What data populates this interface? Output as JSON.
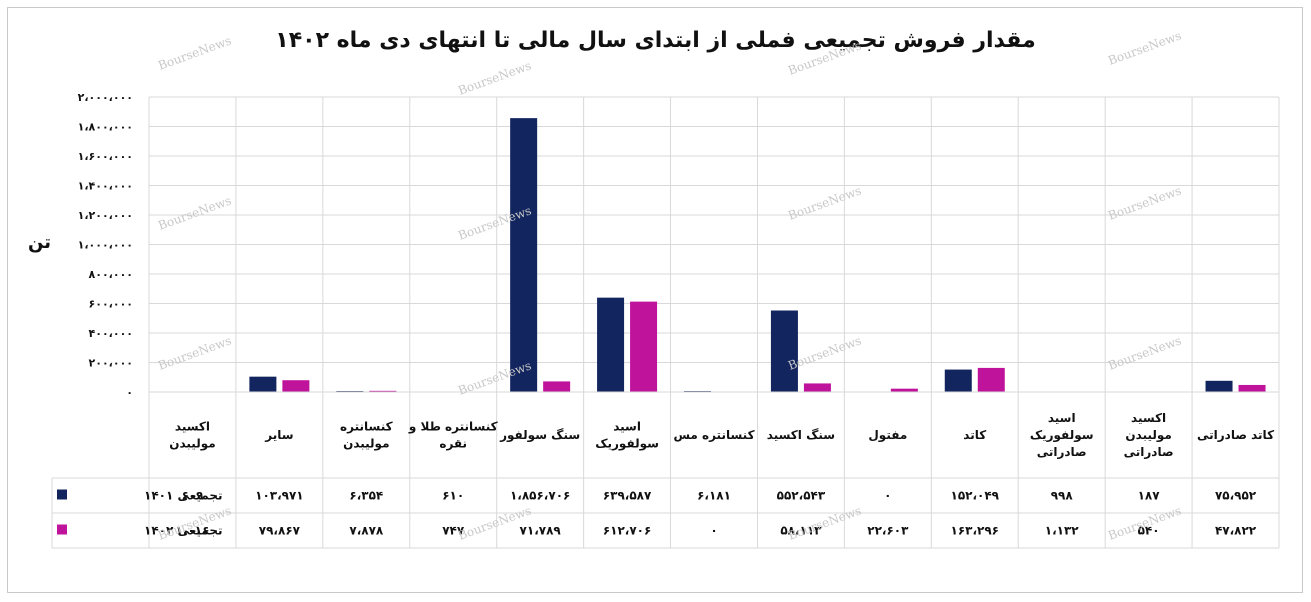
{
  "chart_data": {
    "type": "bar",
    "title": "مقدار فروش تجمیعی فملی از ابتدای سال مالی تا انتهای دی ماه ۱۴۰۲",
    "ylabel": "تن",
    "ylim": [
      0,
      2000000
    ],
    "yticks": [
      0,
      200000,
      400000,
      600000,
      800000,
      1000000,
      1200000,
      1400000,
      1600000,
      1800000,
      2000000
    ],
    "ytick_labels": [
      "۰",
      "۲۰۰،۰۰۰",
      "۴۰۰،۰۰۰",
      "۶۰۰،۰۰۰",
      "۸۰۰،۰۰۰",
      "۱،۰۰۰،۰۰۰",
      "۱،۲۰۰،۰۰۰",
      "۱،۴۰۰،۰۰۰",
      "۱،۶۰۰،۰۰۰",
      "۱،۸۰۰،۰۰۰",
      "۲،۰۰۰،۰۰۰"
    ],
    "grid": true,
    "legend": "left-table",
    "categories": [
      [
        "اکسید",
        "مولیبدن"
      ],
      [
        "سایر"
      ],
      [
        "کنسانتره",
        "مولیبدن"
      ],
      [
        "کنسانتره طلا و",
        "نقره"
      ],
      [
        "سنگ سولفور"
      ],
      [
        "اسید",
        "سولفوریک"
      ],
      [
        "کنسانتره مس"
      ],
      [
        "سنگ اکسید"
      ],
      [
        "مفتول"
      ],
      [
        "کاتد"
      ],
      [
        "اسید",
        "سولفوریک",
        "صادراتی"
      ],
      [
        "اکسید",
        "مولیبدن",
        "صادراتی"
      ],
      [
        "کاتد صادراتی"
      ]
    ],
    "series": [
      {
        "name": "تجمیعی ۱۴۰۱",
        "color": "#12255e",
        "values": [
          609,
          103971,
          6354,
          610,
          1856706,
          639587,
          6181,
          552543,
          0,
          152049,
          998,
          187,
          75952
        ],
        "labels": [
          "۶۰۹",
          "۱۰۳،۹۷۱",
          "۶،۳۵۴",
          "۶۱۰",
          "۱،۸۵۶،۷۰۶",
          "۶۳۹،۵۸۷",
          "۶،۱۸۱",
          "۵۵۲،۵۴۳",
          "۰",
          "۱۵۲،۰۴۹",
          "۹۹۸",
          "۱۸۷",
          "۷۵،۹۵۲"
        ]
      },
      {
        "name": "تجمیعی ۱۴۰۲",
        "color": "#c0139b",
        "values": [
          1016,
          79867,
          7878,
          747,
          71789,
          612706,
          0,
          58113,
          22603,
          163296,
          1132,
          540,
          47822
        ],
        "labels": [
          "۱،۰۱۶",
          "۷۹،۸۶۷",
          "۷،۸۷۸",
          "۷۴۷",
          "۷۱،۷۸۹",
          "۶۱۲،۷۰۶",
          "۰",
          "۵۸،۱۱۳",
          "۲۲،۶۰۳",
          "۱۶۳،۲۹۶",
          "۱،۱۳۲",
          "۵۴۰",
          "۴۷،۸۲۲"
        ]
      }
    ]
  },
  "watermark": "BourseNews"
}
